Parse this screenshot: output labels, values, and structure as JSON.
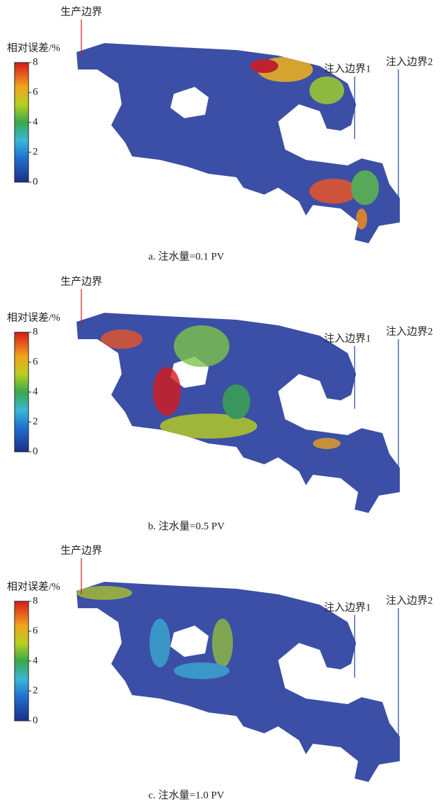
{
  "panels": [
    {
      "caption": "a. 注水量=0.1 PV",
      "colorbar": {
        "title": "相对误差/%",
        "range": [
          0,
          8
        ],
        "ticks": [
          0,
          2,
          4,
          6,
          8
        ]
      },
      "labels": {
        "production": "生产边界",
        "injection1": "注入边界1",
        "injection2": "注入边界2"
      }
    },
    {
      "caption": "b. 注水量=0.5 PV",
      "colorbar": {
        "title": "相对误差/%",
        "range": [
          0,
          8
        ],
        "ticks": [
          0,
          2,
          4,
          6,
          8
        ]
      },
      "labels": {
        "production": "生产边界",
        "injection1": "注入边界1",
        "injection2": "注入边界2"
      }
    },
    {
      "caption": "c. 注水量=1.0 PV",
      "colorbar": {
        "title": "相对误差/%",
        "range": [
          0,
          8
        ],
        "ticks": [
          0,
          2,
          4,
          6,
          8
        ]
      },
      "labels": {
        "production": "生产边界",
        "injection1": "注入边界1",
        "injection2": "注入边界2"
      }
    }
  ]
}
